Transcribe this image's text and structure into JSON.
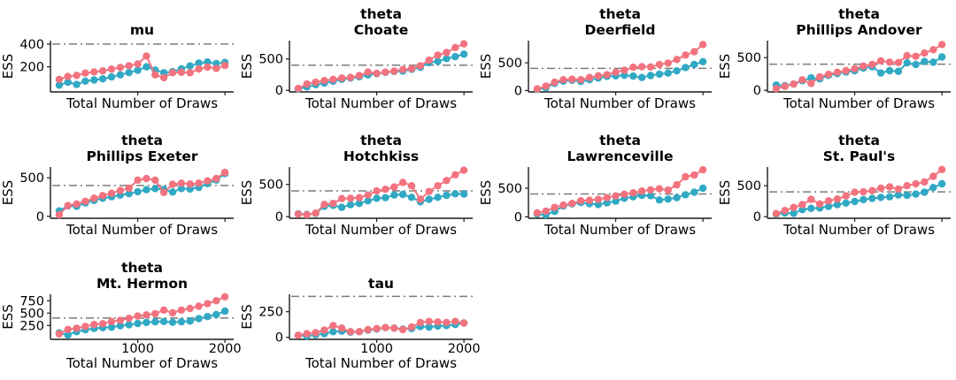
{
  "figure": {
    "ylabel": "ESS",
    "xlabel": "Total Number of Draws",
    "reference_line_value": 400,
    "colors": {
      "series_pink": "#f2737f",
      "series_teal": "#31a9c4",
      "reference_line": "#7b7b7b",
      "axis": "#1a1a1a",
      "text": "#000000",
      "background": "#ffffff"
    }
  },
  "chart_data": [
    {
      "type": "line",
      "title_lines": [
        "mu"
      ],
      "xlabel": "Total Number of Draws",
      "ylabel": "ESS",
      "x": [
        100,
        200,
        300,
        400,
        500,
        600,
        700,
        800,
        900,
        1000,
        1100,
        1200,
        1300,
        1400,
        1500,
        1600,
        1700,
        1800,
        1900,
        2000
      ],
      "xlim": [
        0,
        2100
      ],
      "xticks": [
        1000,
        2000
      ],
      "show_xtick_labels": false,
      "ylim": [
        -20,
        430
      ],
      "yticks": [
        200,
        400
      ],
      "ref_line": 400,
      "grid": false,
      "legend": "none",
      "series": [
        {
          "name": "teal",
          "values": [
            40,
            65,
            45,
            75,
            85,
            95,
            112,
            130,
            150,
            170,
            200,
            172,
            148,
            158,
            182,
            208,
            232,
            242,
            228,
            238
          ]
        },
        {
          "name": "pink",
          "values": [
            90,
            115,
            125,
            145,
            155,
            165,
            180,
            195,
            210,
            225,
            295,
            130,
            105,
            148,
            152,
            148,
            182,
            198,
            186,
            212
          ]
        }
      ]
    },
    {
      "type": "line",
      "title_lines": [
        "theta",
        "Choate"
      ],
      "xlabel": "Total Number of Draws",
      "ylabel": "ESS",
      "x": [
        100,
        200,
        300,
        400,
        500,
        600,
        700,
        800,
        900,
        1000,
        1100,
        1200,
        1300,
        1400,
        1500,
        1600,
        1700,
        1800,
        1900,
        2000
      ],
      "xlim": [
        0,
        2100
      ],
      "xticks": [
        1000,
        2000
      ],
      "show_xtick_labels": false,
      "ylim": [
        -25,
        790
      ],
      "yticks": [
        0,
        500
      ],
      "ref_line": 400,
      "grid": false,
      "legend": "none",
      "series": [
        {
          "name": "teal",
          "values": [
            20,
            55,
            90,
            115,
            145,
            175,
            195,
            215,
            245,
            265,
            285,
            300,
            305,
            335,
            365,
            440,
            460,
            505,
            535,
            575
          ]
        },
        {
          "name": "pink",
          "values": [
            30,
            100,
            130,
            155,
            175,
            195,
            205,
            235,
            290,
            270,
            290,
            305,
            330,
            345,
            390,
            480,
            560,
            600,
            680,
            740
          ]
        }
      ]
    },
    {
      "type": "line",
      "title_lines": [
        "theta",
        "Deerfield"
      ],
      "xlabel": "Total Number of Draws",
      "ylabel": "ESS",
      "x": [
        100,
        200,
        300,
        400,
        500,
        600,
        700,
        800,
        900,
        1000,
        1100,
        1200,
        1300,
        1400,
        1500,
        1600,
        1700,
        1800,
        1900,
        2000
      ],
      "xlim": [
        0,
        2100
      ],
      "xticks": [
        1000,
        2000
      ],
      "show_xtick_labels": false,
      "ylim": [
        -25,
        900
      ],
      "yticks": [
        0,
        500
      ],
      "ref_line": 400,
      "grid": false,
      "legend": "none",
      "series": [
        {
          "name": "teal",
          "values": [
            20,
            50,
            130,
            170,
            185,
            165,
            195,
            225,
            255,
            265,
            275,
            260,
            235,
            270,
            295,
            315,
            355,
            415,
            470,
            520
          ]
        },
        {
          "name": "pink",
          "values": [
            30,
            80,
            150,
            195,
            205,
            195,
            235,
            265,
            285,
            330,
            365,
            420,
            430,
            425,
            470,
            495,
            560,
            640,
            700,
            830
          ]
        }
      ]
    },
    {
      "type": "line",
      "title_lines": [
        "theta",
        "Phillips Andover"
      ],
      "xlabel": "Total Number of Draws",
      "ylabel": "ESS",
      "x": [
        100,
        200,
        300,
        400,
        500,
        600,
        700,
        800,
        900,
        1000,
        1100,
        1200,
        1300,
        1400,
        1500,
        1600,
        1700,
        1800,
        1900,
        2000
      ],
      "xlim": [
        0,
        2100
      ],
      "xticks": [
        1000,
        2000
      ],
      "show_xtick_labels": false,
      "ylim": [
        -25,
        760
      ],
      "yticks": [
        0,
        500
      ],
      "ref_line": 400,
      "grid": false,
      "legend": "none",
      "series": [
        {
          "name": "teal",
          "values": [
            80,
            70,
            95,
            145,
            190,
            175,
            230,
            255,
            280,
            300,
            340,
            360,
            265,
            300,
            290,
            420,
            395,
            440,
            430,
            510
          ]
        },
        {
          "name": "pink",
          "values": [
            25,
            60,
            95,
            160,
            105,
            205,
            245,
            275,
            300,
            330,
            370,
            395,
            450,
            430,
            425,
            530,
            520,
            570,
            620,
            700
          ]
        }
      ]
    },
    {
      "type": "line",
      "title_lines": [
        "theta",
        "Phillips Exeter"
      ],
      "xlabel": "Total Number of Draws",
      "ylabel": "ESS",
      "x": [
        100,
        200,
        300,
        400,
        500,
        600,
        700,
        800,
        900,
        1000,
        1100,
        1200,
        1300,
        1400,
        1500,
        1600,
        1700,
        1800,
        1900,
        2000
      ],
      "xlim": [
        0,
        2100
      ],
      "xticks": [
        1000,
        2000
      ],
      "show_xtick_labels": false,
      "ylim": [
        -25,
        640
      ],
      "yticks": [
        0,
        500
      ],
      "ref_line": 400,
      "grid": false,
      "legend": "none",
      "series": [
        {
          "name": "teal",
          "values": [
            70,
            135,
            130,
            175,
            205,
            235,
            255,
            275,
            295,
            320,
            345,
            360,
            350,
            315,
            360,
            355,
            375,
            425,
            470,
            555
          ]
        },
        {
          "name": "pink",
          "values": [
            20,
            140,
            160,
            195,
            235,
            270,
            300,
            335,
            365,
            470,
            490,
            470,
            310,
            415,
            430,
            420,
            430,
            460,
            490,
            570
          ]
        }
      ]
    },
    {
      "type": "line",
      "title_lines": [
        "theta",
        "Hotchkiss"
      ],
      "xlabel": "Total Number of Draws",
      "ylabel": "ESS",
      "x": [
        100,
        200,
        300,
        400,
        500,
        600,
        700,
        800,
        900,
        1000,
        1100,
        1200,
        1300,
        1400,
        1500,
        1600,
        1700,
        1800,
        1900,
        2000
      ],
      "xlim": [
        0,
        2100
      ],
      "xticks": [
        1000,
        2000
      ],
      "show_xtick_labels": false,
      "ylim": [
        -25,
        770
      ],
      "yticks": [
        0,
        500
      ],
      "ref_line": 400,
      "grid": false,
      "legend": "none",
      "series": [
        {
          "name": "teal",
          "values": [
            45,
            35,
            50,
            160,
            175,
            145,
            185,
            205,
            245,
            285,
            295,
            335,
            345,
            300,
            230,
            270,
            300,
            330,
            355,
            350
          ]
        },
        {
          "name": "pink",
          "values": [
            40,
            30,
            55,
            190,
            205,
            280,
            285,
            295,
            335,
            400,
            425,
            460,
            530,
            480,
            270,
            390,
            480,
            560,
            650,
            720
          ]
        }
      ]
    },
    {
      "type": "line",
      "title_lines": [
        "theta",
        "Lawrenceville"
      ],
      "xlabel": "Total Number of Draws",
      "ylabel": "ESS",
      "x": [
        100,
        200,
        300,
        400,
        500,
        600,
        700,
        800,
        900,
        1000,
        1100,
        1200,
        1300,
        1400,
        1500,
        1600,
        1700,
        1800,
        1900,
        2000
      ],
      "xlim": [
        0,
        2100
      ],
      "xticks": [
        1000,
        2000
      ],
      "show_xtick_labels": false,
      "ylim": [
        -25,
        870
      ],
      "yticks": [
        0,
        500
      ],
      "ref_line": 400,
      "grid": false,
      "legend": "none",
      "series": [
        {
          "name": "teal",
          "values": [
            50,
            35,
            95,
            190,
            225,
            250,
            230,
            215,
            245,
            275,
            325,
            350,
            375,
            370,
            295,
            310,
            335,
            385,
            430,
            500
          ]
        },
        {
          "name": "pink",
          "values": [
            70,
            100,
            165,
            205,
            235,
            280,
            290,
            305,
            335,
            365,
            395,
            420,
            450,
            470,
            490,
            465,
            560,
            700,
            730,
            820
          ]
        }
      ]
    },
    {
      "type": "line",
      "title_lines": [
        "theta",
        "St. Paul's"
      ],
      "xlabel": "Total Number of Draws",
      "ylabel": "ESS",
      "x": [
        100,
        200,
        300,
        400,
        500,
        600,
        700,
        800,
        900,
        1000,
        1100,
        1200,
        1300,
        1400,
        1500,
        1600,
        1700,
        1800,
        1900,
        2000
      ],
      "xlim": [
        0,
        2100
      ],
      "xticks": [
        1000,
        2000
      ],
      "show_xtick_labels": false,
      "ylim": [
        -25,
        800
      ],
      "yticks": [
        0,
        500
      ],
      "ref_line": 400,
      "grid": false,
      "legend": "none",
      "series": [
        {
          "name": "teal",
          "values": [
            40,
            60,
            55,
            115,
            135,
            140,
            165,
            195,
            220,
            245,
            275,
            295,
            310,
            320,
            350,
            345,
            365,
            395,
            470,
            530
          ]
        },
        {
          "name": "pink",
          "values": [
            50,
            100,
            150,
            195,
            280,
            205,
            255,
            285,
            335,
            395,
            400,
            420,
            460,
            480,
            445,
            500,
            530,
            560,
            650,
            760
          ]
        }
      ]
    },
    {
      "type": "line",
      "title_lines": [
        "theta",
        "Mt. Hermon"
      ],
      "xlabel": "Total Number of Draws",
      "ylabel": "ESS",
      "x": [
        100,
        200,
        300,
        400,
        500,
        600,
        700,
        800,
        900,
        1000,
        1100,
        1200,
        1300,
        1400,
        1500,
        1600,
        1700,
        1800,
        1900,
        2000
      ],
      "xlim": [
        0,
        2100
      ],
      "xticks": [
        1000,
        2000
      ],
      "xtick_labels": [
        "1000",
        "2000"
      ],
      "show_xtick_labels": true,
      "ylim": [
        -30,
        880
      ],
      "yticks": [
        250,
        500,
        750
      ],
      "ref_line": 400,
      "grid": false,
      "legend": "none",
      "series": [
        {
          "name": "teal",
          "values": [
            100,
            60,
            125,
            165,
            190,
            205,
            215,
            245,
            265,
            290,
            310,
            325,
            330,
            315,
            325,
            340,
            390,
            430,
            470,
            540
          ]
        },
        {
          "name": "pink",
          "values": [
            80,
            170,
            195,
            230,
            270,
            285,
            330,
            355,
            395,
            440,
            465,
            490,
            560,
            505,
            560,
            595,
            640,
            690,
            750,
            830
          ]
        }
      ]
    },
    {
      "type": "line",
      "title_lines": [
        "tau"
      ],
      "xlabel": "Total Number of Draws",
      "ylabel": "ESS",
      "x": [
        100,
        200,
        300,
        400,
        500,
        600,
        700,
        800,
        900,
        1000,
        1100,
        1200,
        1300,
        1400,
        1500,
        1600,
        1700,
        1800,
        1900,
        2000
      ],
      "xlim": [
        0,
        2100
      ],
      "xticks": [
        1000,
        2000
      ],
      "xtick_labels": [
        "1000",
        "2000"
      ],
      "show_xtick_labels": true,
      "ylim": [
        -20,
        420
      ],
      "yticks": [
        0,
        250
      ],
      "ref_line": 400,
      "grid": false,
      "legend": "none",
      "series": [
        {
          "name": "teal",
          "values": [
            20,
            12,
            25,
            35,
            55,
            60,
            50,
            55,
            70,
            80,
            95,
            90,
            80,
            85,
            105,
            100,
            110,
            115,
            125,
            140
          ]
        },
        {
          "name": "pink",
          "values": [
            20,
            35,
            45,
            70,
            115,
            90,
            55,
            55,
            75,
            85,
            95,
            90,
            75,
            100,
            145,
            155,
            150,
            145,
            155,
            140
          ]
        }
      ]
    }
  ]
}
